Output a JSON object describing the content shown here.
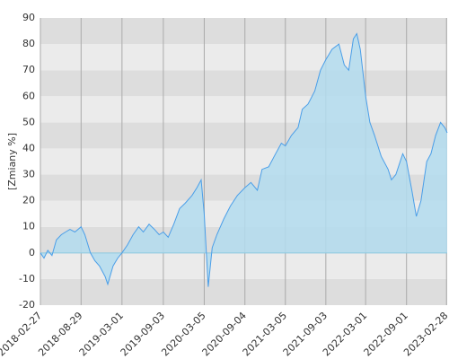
{
  "chart_data": {
    "type": "area",
    "y_label": "[Zmiany %]",
    "x": [
      "2018-02-27",
      "2018-03-15",
      "2018-04-01",
      "2018-04-20",
      "2018-05-10",
      "2018-06-01",
      "2018-06-20",
      "2018-07-10",
      "2018-08-01",
      "2018-08-29",
      "2018-09-15",
      "2018-10-10",
      "2018-10-30",
      "2018-11-20",
      "2018-12-15",
      "2018-12-27",
      "2019-01-20",
      "2019-02-10",
      "2019-03-01",
      "2019-03-25",
      "2019-04-20",
      "2019-05-15",
      "2019-06-05",
      "2019-07-01",
      "2019-07-25",
      "2019-08-15",
      "2019-09-03",
      "2019-09-25",
      "2019-10-20",
      "2019-11-15",
      "2019-12-10",
      "2020-01-10",
      "2020-02-01",
      "2020-02-20",
      "2020-03-05",
      "2020-03-23",
      "2020-04-10",
      "2020-05-01",
      "2020-06-01",
      "2020-07-01",
      "2020-08-01",
      "2020-09-04",
      "2020-10-01",
      "2020-10-30",
      "2020-11-20",
      "2020-12-20",
      "2021-01-20",
      "2021-02-15",
      "2021-03-05",
      "2021-04-01",
      "2021-05-01",
      "2021-05-20",
      "2021-06-15",
      "2021-07-15",
      "2021-08-10",
      "2021-09-03",
      "2021-10-01",
      "2021-11-01",
      "2021-11-25",
      "2021-12-15",
      "2022-01-05",
      "2022-01-20",
      "2022-02-05",
      "2022-03-01",
      "2022-03-20",
      "2022-04-10",
      "2022-05-10",
      "2022-06-10",
      "2022-06-25",
      "2022-07-15",
      "2022-08-15",
      "2022-09-01",
      "2022-09-25",
      "2022-10-15",
      "2022-11-05",
      "2022-12-01",
      "2022-12-20",
      "2023-01-10",
      "2023-02-01",
      "2023-02-20",
      "2023-03-03"
    ],
    "values": [
      0,
      -2,
      1,
      -1,
      5,
      7,
      8,
      9,
      8,
      10,
      7,
      0,
      -3,
      -5,
      -9,
      -12,
      -5,
      -2,
      0,
      3,
      7,
      10,
      8,
      11,
      9,
      7,
      8,
      6,
      11,
      17,
      19,
      22,
      25,
      28,
      15,
      -13,
      2,
      7,
      13,
      18,
      22,
      25,
      27,
      24,
      32,
      33,
      38,
      42,
      41,
      45,
      48,
      55,
      57,
      62,
      70,
      74,
      78,
      80,
      72,
      70,
      82,
      84,
      78,
      60,
      50,
      45,
      37,
      32,
      28,
      30,
      38,
      35,
      24,
      14,
      20,
      35,
      38,
      45,
      50,
      48,
      46
    ],
    "line_color": "#4a9ee8",
    "fill_color": "#b3dcee",
    "xlim": [
      "2018-02-27",
      "2023-03-03"
    ],
    "xticks": [
      "2018-02-27",
      "2018-08-29",
      "2019-03-01",
      "2019-09-03",
      "2020-03-05",
      "2020-09-04",
      "2021-03-05",
      "2021-09-03",
      "2022-03-01",
      "2022-09-01",
      "2023-02-28"
    ],
    "ylim": [
      -20,
      90
    ],
    "yticks": [
      -20,
      -10,
      0,
      10,
      20,
      30,
      40,
      50,
      60,
      70,
      80,
      90
    ],
    "band_colors": [
      "#dddddd",
      "#ebebeb"
    ],
    "grid": true
  }
}
